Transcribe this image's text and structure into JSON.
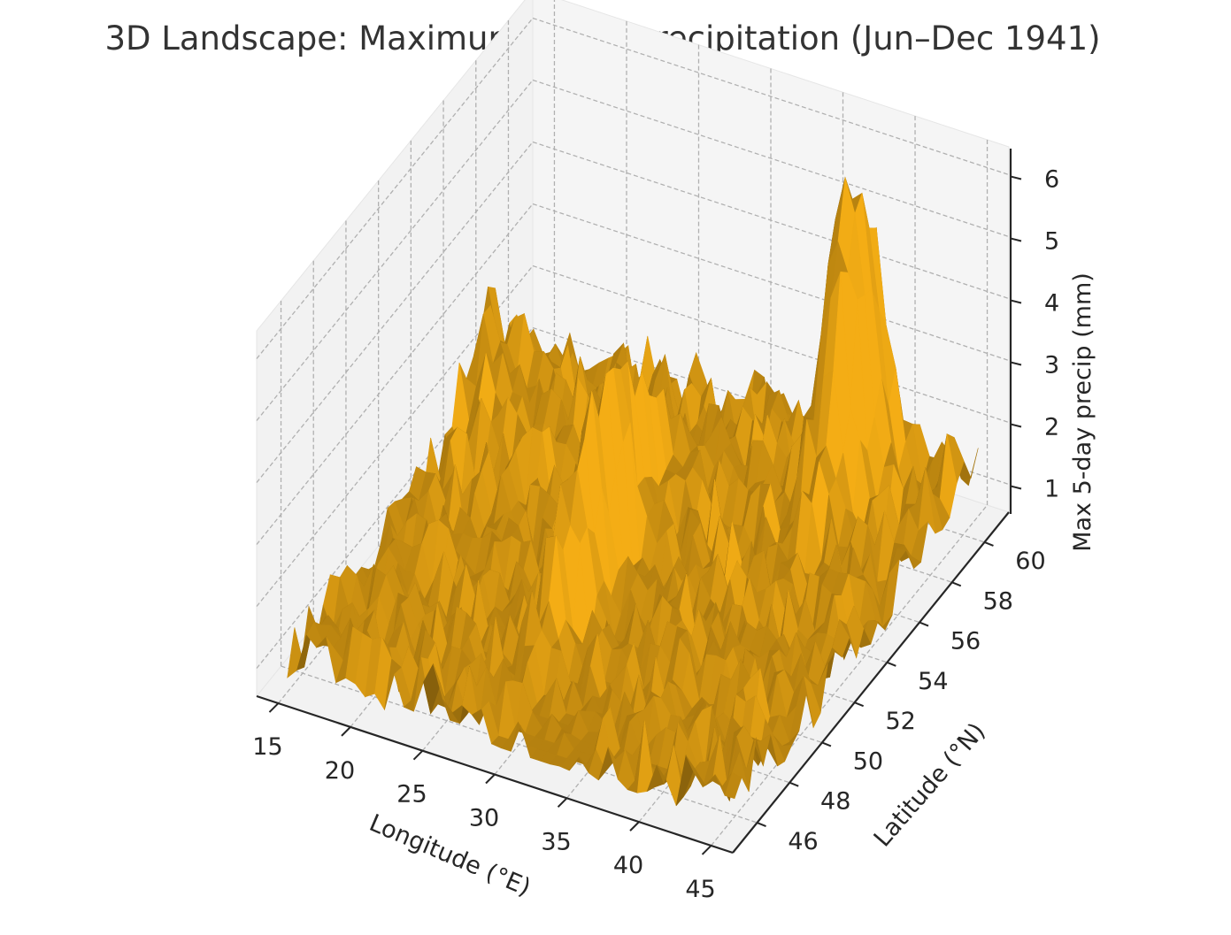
{
  "chart_data": {
    "type": "surface3d",
    "title": "3D Landscape: Maximum 5-day precipitation (Jun–Dec 1941)",
    "xlabel": "Longitude (°E)",
    "ylabel": "Latitude (°N)",
    "zlabel": "Max 5-day precip (mm)",
    "xlim": [
      13.5,
      46.5
    ],
    "ylim": [
      44.5,
      61.5
    ],
    "zlim": [
      0.55,
      6.45
    ],
    "x_ticks": [
      15,
      20,
      25,
      30,
      35,
      40,
      45
    ],
    "y_ticks": [
      46,
      48,
      50,
      52,
      54,
      56,
      58,
      60
    ],
    "z_ticks": [
      1,
      2,
      3,
      4,
      5,
      6
    ],
    "grid": true,
    "surface_color": "#e0a000",
    "surface_edge_color": "#b07c00",
    "pane_color": "#f2f2f2",
    "grid_color": "#b0b0b0",
    "features": [
      {
        "lon": 28.5,
        "lat": 52.5,
        "peak": 4.4
      },
      {
        "lon": 39.0,
        "lat": 58.5,
        "peak": 6.2
      },
      {
        "lon": 15.0,
        "lat": 57.5,
        "peak": 2.4
      },
      {
        "lon": 45.0,
        "lat": 59.5,
        "peak": 1.6
      },
      {
        "lon": 31.0,
        "lat": 46.5,
        "peak": 0.7
      }
    ]
  }
}
